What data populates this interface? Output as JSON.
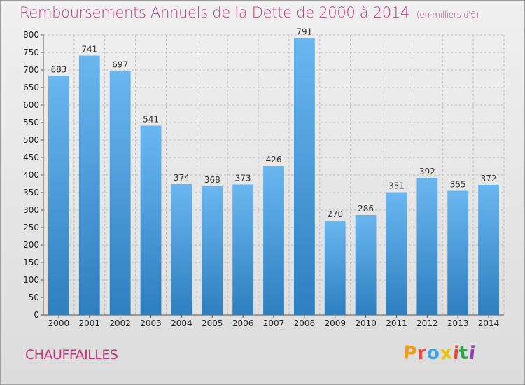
{
  "header": {
    "title": "Remboursements Annuels de la Dette de 2000 à 2014",
    "unit": "(en milliers d'€)"
  },
  "footer": {
    "town": "CHAUFFAILLES",
    "logo_letters": [
      "P",
      "r",
      "o",
      "x",
      "i",
      "t",
      "i"
    ],
    "logo_colors": [
      "#f39c12",
      "#e74c3c",
      "#3aa3e3",
      "#e6c300",
      "#e74c3c",
      "#2aa84a",
      "#8e44ad"
    ]
  },
  "colors": {
    "bar_top": "#6ab6ef",
    "bar_bottom": "#2e7fc0",
    "grid": "#bdbdbd",
    "accent": "#c0397a"
  },
  "chart_data": {
    "type": "bar",
    "title": "Remboursements Annuels de la Dette de 2000 à 2014",
    "xlabel": "",
    "ylabel": "(en milliers d'€)",
    "categories": [
      "2000",
      "2001",
      "2002",
      "2003",
      "2004",
      "2005",
      "2006",
      "2007",
      "2008",
      "2009",
      "2010",
      "2011",
      "2012",
      "2013",
      "2014"
    ],
    "values": [
      683,
      741,
      697,
      541,
      374,
      368,
      373,
      426,
      791,
      270,
      286,
      351,
      392,
      355,
      372
    ],
    "ylim": [
      0,
      800
    ],
    "yticks": [
      0,
      50,
      100,
      150,
      200,
      250,
      300,
      350,
      400,
      450,
      500,
      550,
      600,
      650,
      700,
      750,
      800
    ],
    "grid": true,
    "legend": "none"
  }
}
